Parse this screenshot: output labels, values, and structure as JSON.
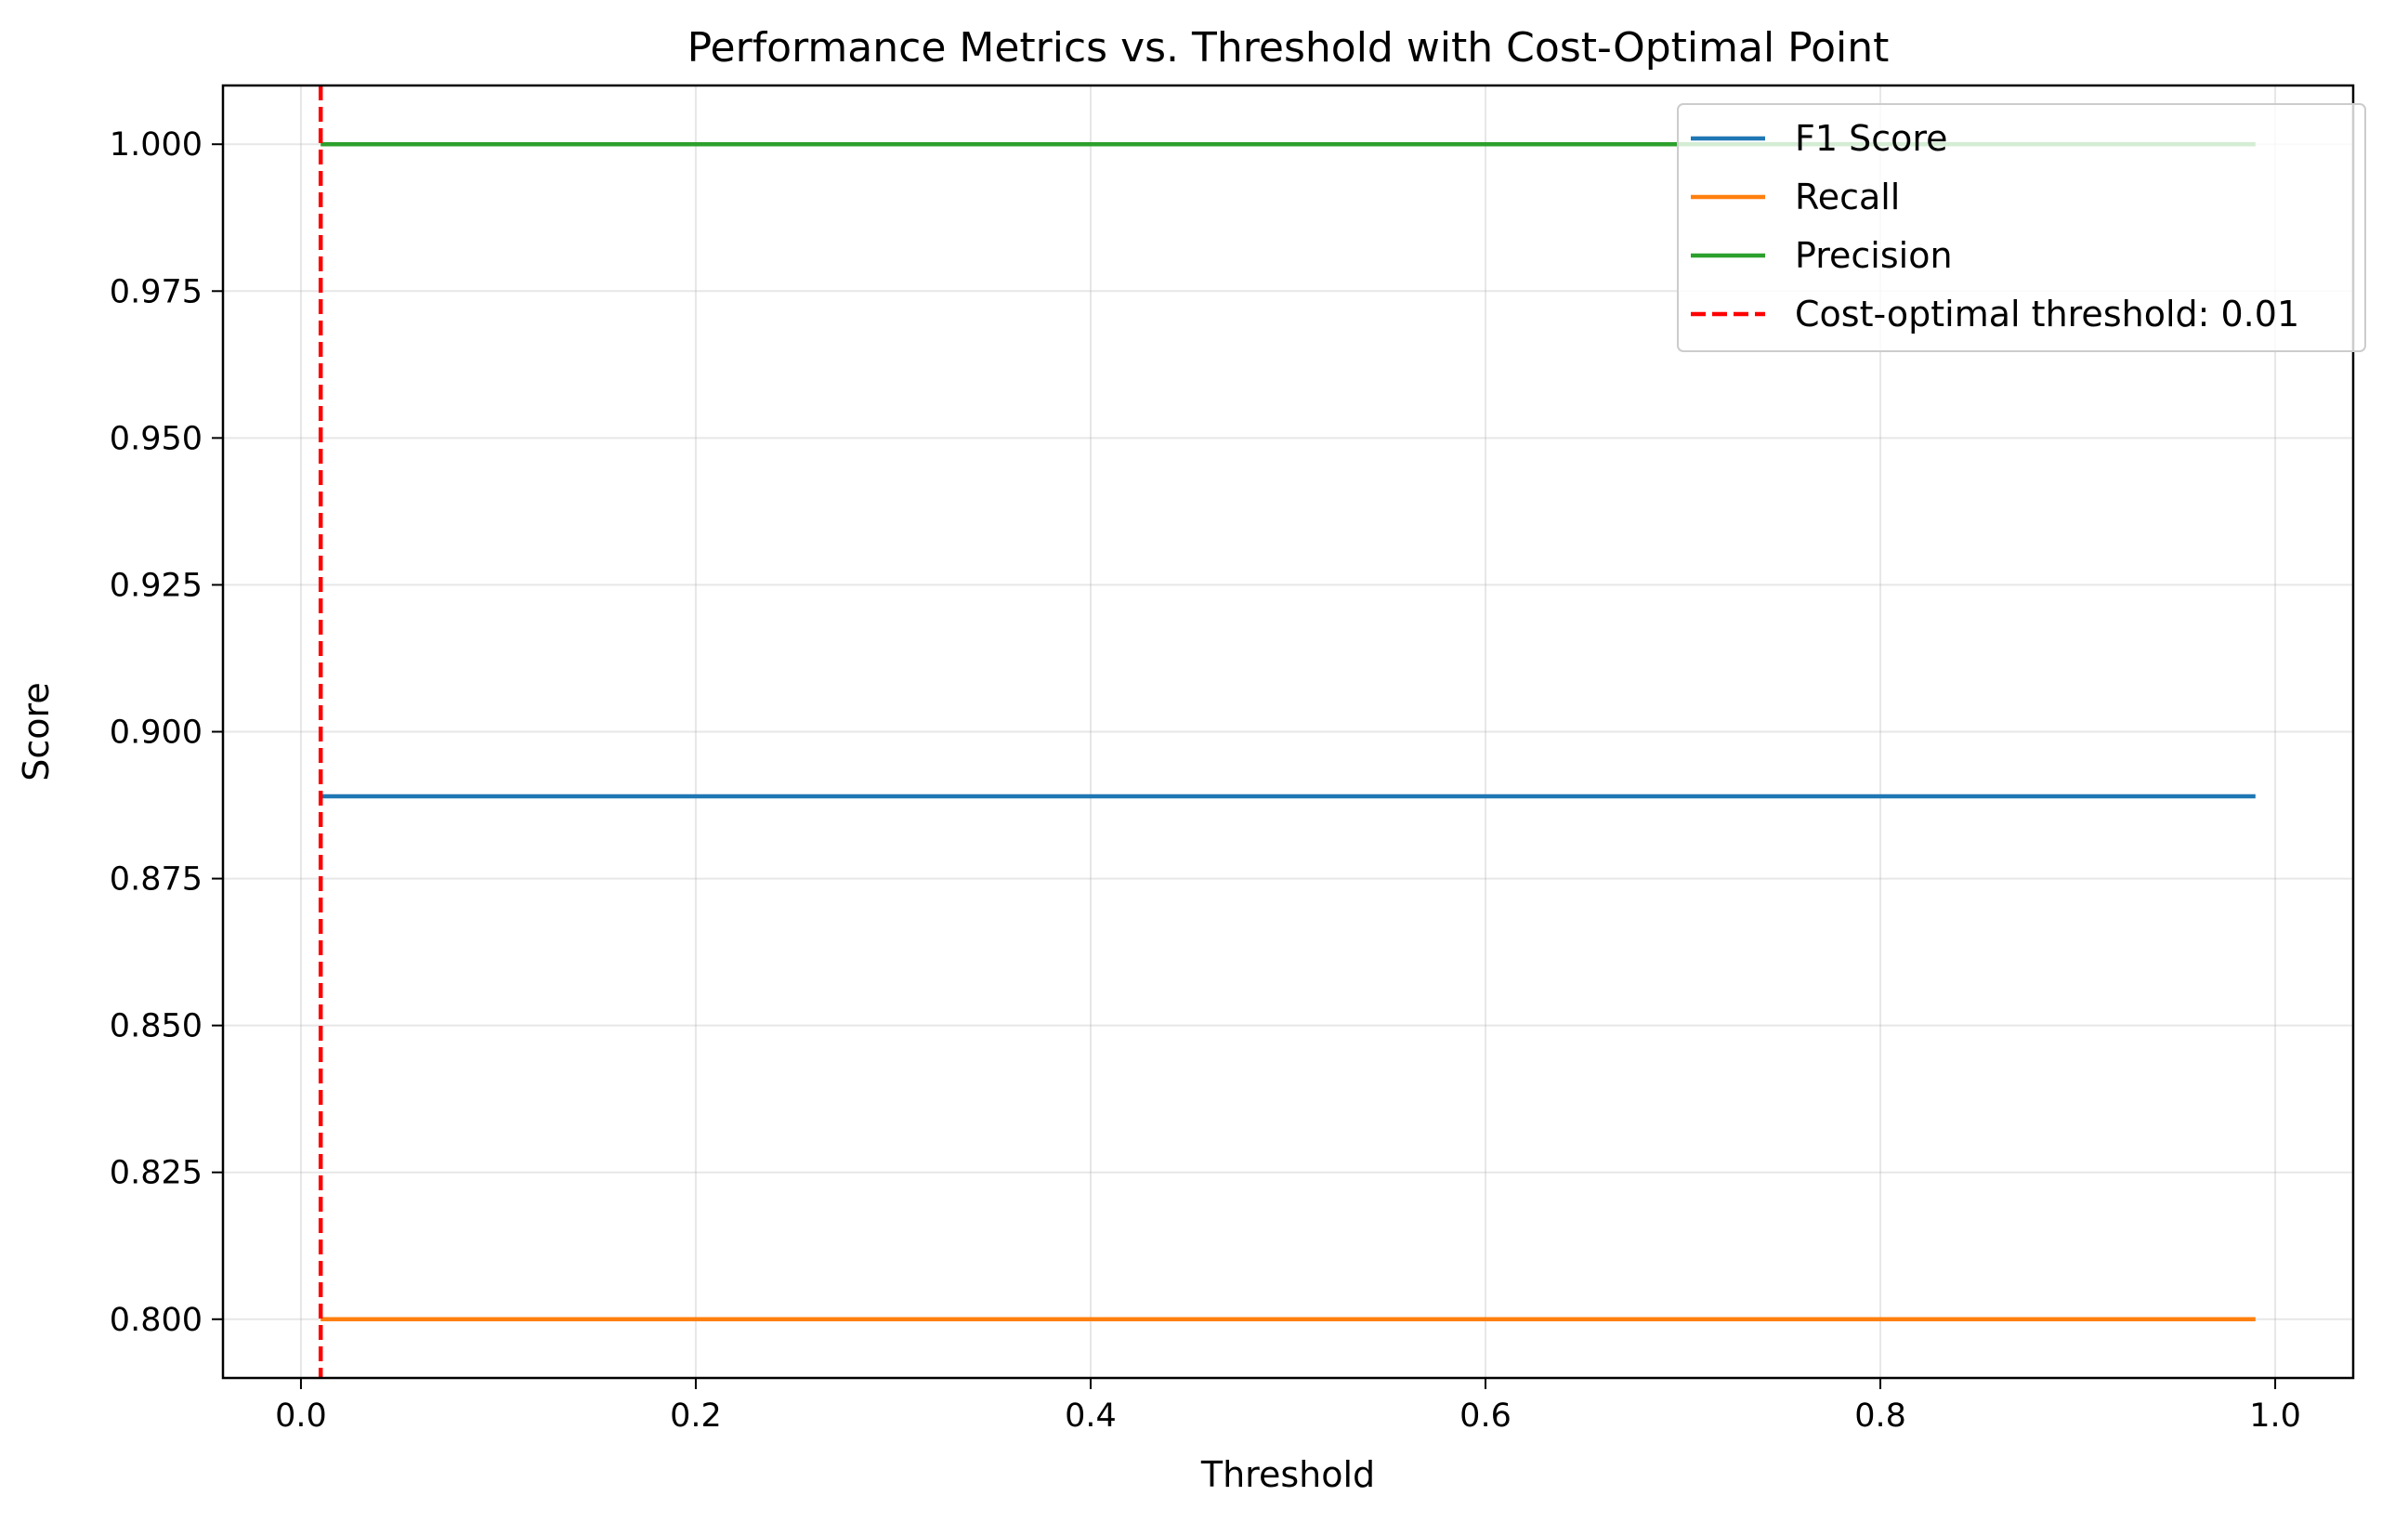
{
  "chart_data": {
    "type": "line",
    "title": "Performance Metrics vs. Threshold with Cost-Optimal Point",
    "xlabel": "Threshold",
    "ylabel": "Score",
    "xlim": [
      -0.0395,
      1.0395
    ],
    "ylim": [
      0.79,
      1.01
    ],
    "x_ticks": [
      0.0,
      0.2,
      0.4,
      0.6,
      0.8,
      1.0
    ],
    "x_tick_labels": [
      "0.0",
      "0.2",
      "0.4",
      "0.6",
      "0.8",
      "1.0"
    ],
    "y_ticks": [
      0.8,
      0.825,
      0.85,
      0.875,
      0.9,
      0.925,
      0.95,
      0.975,
      1.0
    ],
    "y_tick_labels": [
      "0.800",
      "0.825",
      "0.850",
      "0.875",
      "0.900",
      "0.925",
      "0.950",
      "0.975",
      "1.000"
    ],
    "grid": true,
    "legend_position": "top-right",
    "series": [
      {
        "name": "F1 Score",
        "color": "#1f77b4",
        "x": [
          0.01,
          0.99
        ],
        "y": [
          0.889,
          0.889
        ]
      },
      {
        "name": "Recall",
        "color": "#ff7f0e",
        "x": [
          0.01,
          0.99
        ],
        "y": [
          0.8,
          0.8
        ]
      },
      {
        "name": "Precision",
        "color": "#2ca02c",
        "x": [
          0.01,
          0.99
        ],
        "y": [
          1.0,
          1.0
        ]
      }
    ],
    "vline": {
      "name": "Cost-optimal threshold: 0.01",
      "x": 0.01,
      "color": "#ff0000",
      "style": "dashed"
    }
  }
}
